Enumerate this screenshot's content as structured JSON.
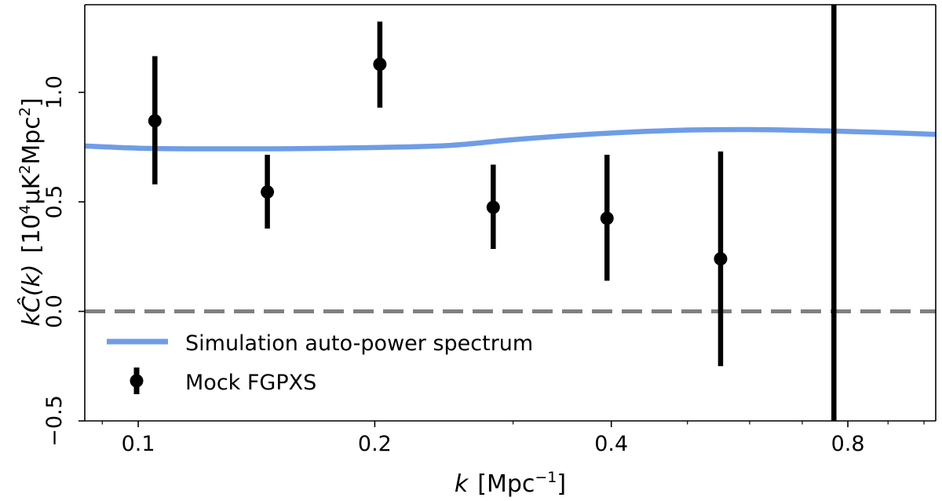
{
  "chart_data": {
    "type": "scatter",
    "title": "",
    "xscale": "log",
    "xlim": [
      0.0855,
      1.035
    ],
    "ylim": [
      -0.5,
      1.4
    ],
    "xlabel": {
      "main": "k",
      "unit": "[Mpc",
      "unit_sup": "−1",
      "unit_end": "]"
    },
    "ylabel": {
      "main": "kĈ(k)",
      "unit_pre": "[10",
      "unit_sup1": "4",
      "unit_mid": "μK",
      "unit_sup2": "2",
      "unit_mid2": "Mpc",
      "unit_sup3": "2",
      "unit_end": "]"
    },
    "xticks": [
      {
        "value": 0.1,
        "label": "0.1"
      },
      {
        "value": 0.2,
        "label": "0.2"
      },
      {
        "value": 0.4,
        "label": "0.4"
      },
      {
        "value": 0.8,
        "label": "0.8"
      }
    ],
    "yticks": [
      {
        "value": -0.5,
        "label": "−0.5"
      },
      {
        "value": 0.0,
        "label": "0.0"
      },
      {
        "value": 0.5,
        "label": "0.5"
      },
      {
        "value": 1.0,
        "label": "1.0"
      }
    ],
    "zero_line": {
      "y": 0.0,
      "color": "#808080",
      "style": "dashed"
    },
    "series": [
      {
        "name": "Simulation auto-power spectrum",
        "kind": "line",
        "color": "#6f9de6",
        "x": [
          0.0855,
          0.1,
          0.12,
          0.15,
          0.2,
          0.25,
          0.3,
          0.38,
          0.48,
          0.6,
          0.75,
          0.9,
          1.035
        ],
        "y": [
          0.755,
          0.745,
          0.742,
          0.742,
          0.748,
          0.758,
          0.784,
          0.81,
          0.826,
          0.83,
          0.824,
          0.816,
          0.808
        ]
      },
      {
        "name": "Mock FGPXS",
        "kind": "errorbar",
        "color": "#000000",
        "points": [
          {
            "x": 0.105,
            "y": 0.87,
            "ylo": 0.58,
            "yhi": 1.165
          },
          {
            "x": 0.146,
            "y": 0.545,
            "ylo": 0.378,
            "yhi": 0.715
          },
          {
            "x": 0.203,
            "y": 1.128,
            "ylo": 0.93,
            "yhi": 1.323
          },
          {
            "x": 0.283,
            "y": 0.475,
            "ylo": 0.285,
            "yhi": 0.67
          },
          {
            "x": 0.395,
            "y": 0.425,
            "ylo": 0.14,
            "yhi": 0.715
          },
          {
            "x": 0.551,
            "y": 0.24,
            "ylo": -0.25,
            "yhi": 0.73
          },
          {
            "x": 0.768,
            "y": null,
            "ylo": -0.5,
            "yhi": 1.4
          }
        ]
      }
    ],
    "legend": {
      "position": "lower-left"
    }
  }
}
